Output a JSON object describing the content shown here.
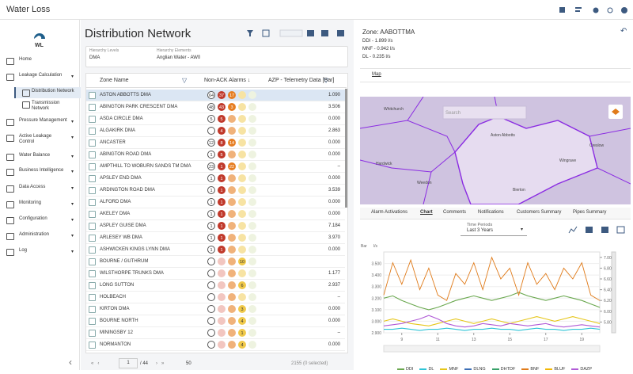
{
  "app": {
    "title": "Water Loss",
    "logo": "WL"
  },
  "menu": [
    "Home",
    "Leakage Calculation",
    "Distribution Network",
    "Transmission Network",
    "Pressure Management",
    "Active Leakage Control",
    "Water Balance",
    "Business Intelligence",
    "Data Access",
    "Monitoring",
    "Configuration",
    "Administration",
    "Log"
  ],
  "page": {
    "title": "Distribution Network",
    "filters": [
      {
        "label": "Hierarchy Levels",
        "value": "DMA"
      },
      {
        "label": "Hierarchy Elements",
        "value": "Anglian Water - AW0"
      }
    ]
  },
  "table": {
    "columns": [
      "Zone Name",
      "Non-ACK Alarms ↓",
      "AZP - Telemetry Data [Bar]"
    ],
    "rows": [
      {
        "name": "ASTON ABBOTTS DMA",
        "alarms": [
          64,
          37,
          17,
          null,
          null
        ],
        "value": "1.090"
      },
      {
        "name": "ABINGTON PARK CRESCENT DMA",
        "alarms": [
          48,
          43,
          3,
          null,
          null
        ],
        "value": "3.506"
      },
      {
        "name": "ASDA CIRCLE DMA",
        "alarms": [
          5,
          5,
          null,
          null,
          null
        ],
        "value": "0.000"
      },
      {
        "name": "ALGAKIRK DMA",
        "alarms": [
          null,
          4,
          null,
          null,
          null
        ],
        "value": "2.863"
      },
      {
        "name": "ANCASTER",
        "alarms": [
          12,
          8,
          14,
          null,
          null
        ],
        "value": "0.000"
      },
      {
        "name": "ABINGTON ROAD DMA",
        "alarms": [
          1,
          5,
          null,
          null,
          null
        ],
        "value": "0.000"
      },
      {
        "name": "AMPTHILL TO WOBURN SANDS TM DMA",
        "alarms": [
          23,
          1,
          22,
          null,
          null
        ],
        "value": "–"
      },
      {
        "name": "APSLEY END DMA",
        "alarms": [
          1,
          1,
          null,
          null,
          null
        ],
        "value": "0.000"
      },
      {
        "name": "ARDINGTON ROAD DMA",
        "alarms": [
          1,
          1,
          null,
          null,
          null
        ],
        "value": "3.539"
      },
      {
        "name": "ALFORD DMA",
        "alarms": [
          1,
          1,
          null,
          null,
          null
        ],
        "value": "0.000"
      },
      {
        "name": "AKELEY DMA",
        "alarms": [
          1,
          1,
          null,
          null,
          null
        ],
        "value": "0.000"
      },
      {
        "name": "ASPLEY GUISE DMA",
        "alarms": [
          1,
          1,
          null,
          null,
          null
        ],
        "value": "7.184"
      },
      {
        "name": "ARLESEY WB DMA",
        "alarms": [
          1,
          1,
          null,
          null,
          null
        ],
        "value": "3.970"
      },
      {
        "name": "ASHWICKEN KINGS LYNN DMA",
        "alarms": [
          1,
          1,
          null,
          null,
          null
        ],
        "value": "0.000"
      },
      {
        "name": "BOURNE / GUTHRUM",
        "alarms": [
          null,
          null,
          null,
          10,
          null
        ],
        "value": null
      },
      {
        "name": "WILSTHORPE TRUNKS DMA",
        "alarms": [
          null,
          null,
          null,
          null,
          null
        ],
        "value": "1.177"
      },
      {
        "name": "LONG SUTTON",
        "alarms": [
          null,
          null,
          null,
          6,
          null
        ],
        "value": "2.937"
      },
      {
        "name": "HOLBEACH",
        "alarms": [
          null,
          null,
          null,
          null,
          null
        ],
        "value": "–"
      },
      {
        "name": "KIRTON DMA",
        "alarms": [
          null,
          null,
          null,
          3,
          null
        ],
        "value": "0.000"
      },
      {
        "name": "BOURNE NORTH",
        "alarms": [
          null,
          null,
          null,
          4,
          null
        ],
        "value": "0.000"
      },
      {
        "name": "MININGSBY 12",
        "alarms": [
          null,
          null,
          null,
          1,
          null
        ],
        "value": "–"
      },
      {
        "name": "NORMANTON",
        "alarms": [
          null,
          null,
          null,
          4,
          null
        ],
        "value": "0.000"
      }
    ]
  },
  "pagination": {
    "page": "1",
    "pages": "/ 44",
    "page_size": "50",
    "total": "2155 (0 selected)"
  },
  "detail": {
    "zone": "Zone: AABOTTMA",
    "metrics": [
      "DDI - 1.899 l/s",
      "MNF - 0.942 l/s",
      "DL - 0.235 l/s"
    ]
  },
  "map": {
    "tab": "Map",
    "search": "Search",
    "places": [
      "Whitchurch",
      "Aston Abbotts",
      "Wingrave",
      "Hardwick",
      "Weedon",
      "Bierton",
      "Creslow"
    ]
  },
  "tabs": [
    "Alarm Activations",
    "Chart",
    "Comments",
    "Notifications",
    "Customers Summary",
    "Pipes Summary"
  ],
  "time_period": {
    "label": "Time Periods",
    "value": "Last 3 Years"
  },
  "chart": {
    "type": "line",
    "y_unit": "Bar",
    "y2_unit": "l/s",
    "x": [
      8,
      8.5,
      9,
      9.5,
      10,
      10.5,
      11,
      11.5,
      12,
      12.5,
      13,
      13.5,
      14,
      14.5,
      15,
      15.5,
      16,
      16.5,
      17,
      17.5,
      18,
      18.5,
      19,
      19.5,
      20
    ],
    "xlim": [
      8,
      20
    ],
    "xticks": [
      9,
      11,
      13,
      15,
      17,
      19
    ],
    "ylim": [
      2.9,
      3.6
    ],
    "yticks": [
      {
        "value": 2.9,
        "label": "2.900"
      },
      {
        "value": 3.0,
        "label": "3.000"
      },
      {
        "value": 3.1,
        "label": "3.100"
      },
      {
        "value": 3.2,
        "label": "3.200"
      },
      {
        "value": 3.3,
        "label": "3.300"
      },
      {
        "value": 3.4,
        "label": "3.400"
      },
      {
        "value": 3.5,
        "label": "3.500"
      }
    ],
    "y2lim": [
      5.6,
      7.1
    ],
    "y2ticks": [
      {
        "value": 5.8,
        "label": "5.800"
      },
      {
        "value": 6.0,
        "label": "6.000"
      },
      {
        "value": 6.2,
        "label": "6.200"
      },
      {
        "value": 6.4,
        "label": "6.400"
      },
      {
        "value": 6.6,
        "label": "6.600"
      },
      {
        "value": 6.8,
        "label": "6.800"
      },
      {
        "value": 7.0,
        "label": "7.000"
      }
    ],
    "series": [
      {
        "name": "DDI",
        "color": "#6aa84f",
        "values": [
          3.2,
          3.22,
          3.18,
          3.15,
          3.12,
          3.1,
          3.12,
          3.15,
          3.18,
          3.2,
          3.22,
          3.2,
          3.18,
          3.2,
          3.22,
          3.25,
          3.22,
          3.2,
          3.18,
          3.2,
          3.22,
          3.2,
          3.18,
          3.15,
          3.12
        ]
      },
      {
        "name": "DL",
        "color": "#2ec4d6",
        "values": [
          2.93,
          2.93,
          2.94,
          2.93,
          2.92,
          2.93,
          2.93,
          2.94,
          2.93,
          2.92,
          2.93,
          2.93,
          2.94,
          2.93,
          2.93,
          2.92,
          2.93,
          2.94,
          2.93,
          2.93,
          2.92,
          2.93,
          2.93,
          2.94,
          2.93
        ]
      },
      {
        "name": "MNF",
        "color": "#e6c619",
        "values": [
          3.0,
          3.02,
          3.0,
          2.98,
          2.97,
          2.96,
          2.98,
          3.0,
          3.02,
          3.0,
          2.98,
          3.0,
          3.02,
          3.0,
          2.98,
          3.0,
          3.02,
          3.04,
          3.02,
          3.0,
          3.02,
          3.04,
          3.02,
          3.0,
          2.98
        ]
      },
      {
        "name": "DLNG",
        "color": "#3d6fb6"
      },
      {
        "name": "DHTDF",
        "color": "#38a169"
      },
      {
        "name": "BNF",
        "color": "#e07b1a",
        "axis": "y2",
        "values": [
          6.3,
          6.9,
          6.5,
          6.95,
          6.4,
          6.8,
          6.3,
          6.2,
          6.7,
          6.5,
          6.9,
          6.4,
          7.0,
          6.6,
          6.8,
          6.3,
          6.9,
          6.5,
          6.7,
          6.4,
          6.8,
          6.6,
          6.9,
          6.3,
          6.2
        ]
      },
      {
        "name": "BLUF",
        "color": "#f2b705"
      },
      {
        "name": "DAZP",
        "color": "#b05bd6",
        "values": [
          2.96,
          2.97,
          2.98,
          3.0,
          3.02,
          3.05,
          3.02,
          2.98,
          2.96,
          2.95,
          2.96,
          2.98,
          2.97,
          2.96,
          2.98,
          2.97,
          2.96,
          2.97,
          2.98,
          2.96,
          2.95,
          2.96,
          2.97,
          2.96,
          2.95
        ]
      }
    ]
  }
}
